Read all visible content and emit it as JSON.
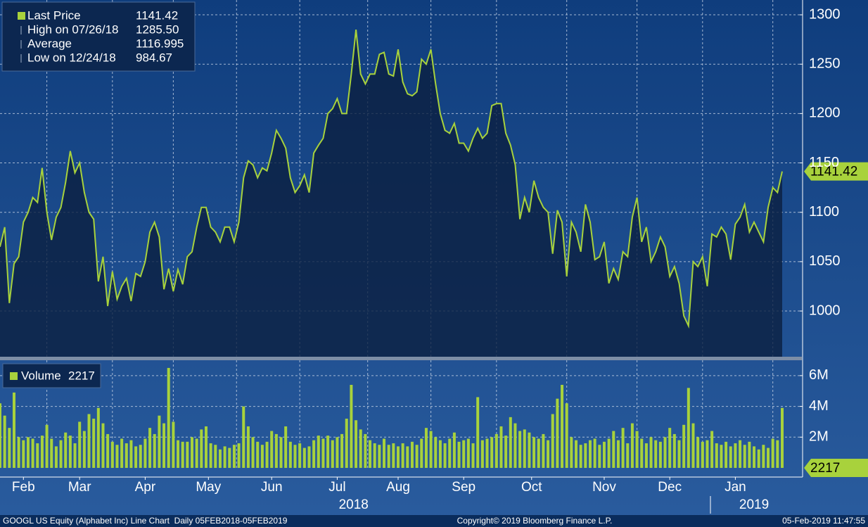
{
  "chart_data": [
    {
      "type": "line",
      "series": [
        {
          "name": "Last Price",
          "color": "#a8d23c",
          "values": [
            1065,
            1085,
            1008,
            1048,
            1055,
            1090,
            1100,
            1115,
            1110,
            1145,
            1100,
            1072,
            1095,
            1105,
            1130,
            1162,
            1140,
            1150,
            1120,
            1100,
            1093,
            1030,
            1055,
            1005,
            1040,
            1012,
            1025,
            1033,
            1010,
            1038,
            1035,
            1050,
            1080,
            1090,
            1075,
            1022,
            1043,
            1020,
            1042,
            1027,
            1055,
            1060,
            1085,
            1105,
            1105,
            1085,
            1080,
            1070,
            1085,
            1085,
            1070,
            1090,
            1135,
            1152,
            1148,
            1135,
            1145,
            1142,
            1160,
            1183,
            1175,
            1165,
            1135,
            1120,
            1127,
            1138,
            1120,
            1160,
            1168,
            1175,
            1200,
            1205,
            1215,
            1200,
            1200,
            1240,
            1285,
            1240,
            1230,
            1240,
            1240,
            1260,
            1262,
            1240,
            1238,
            1265,
            1232,
            1220,
            1218,
            1222,
            1255,
            1250,
            1265,
            1230,
            1200,
            1183,
            1180,
            1190,
            1170,
            1170,
            1162,
            1175,
            1185,
            1175,
            1180,
            1208,
            1210,
            1210,
            1180,
            1168,
            1148,
            1093,
            1115,
            1100,
            1132,
            1115,
            1105,
            1100,
            1058,
            1102,
            1090,
            1035,
            1090,
            1080,
            1060,
            1108,
            1090,
            1052,
            1055,
            1070,
            1028,
            1043,
            1032,
            1060,
            1055,
            1095,
            1115,
            1070,
            1085,
            1050,
            1060,
            1075,
            1065,
            1035,
            1045,
            1028,
            995,
            985,
            1050,
            1045,
            1055,
            1025,
            1078,
            1075,
            1085,
            1078,
            1052,
            1088,
            1095,
            1108,
            1080,
            1090,
            1080,
            1070,
            1105,
            1125,
            1120,
            1141.42
          ]
        }
      ],
      "stats": [
        {
          "name": "High on 07/26/18",
          "value": 1285.5,
          "value_label": "1285.50"
        },
        {
          "name": "Average",
          "value": 1116.995
        },
        {
          "name": "Low on 12/24/18",
          "value": 984.67
        }
      ],
      "xlim": [
        0,
        167
      ],
      "ylim": [
        953.7,
        1315
      ],
      "yticks": [
        1000,
        1050,
        1100,
        1150,
        1200,
        1250,
        1300
      ],
      "grid": true,
      "xticks": [
        {
          "value": 5,
          "label": "Feb"
        },
        {
          "value": 17,
          "label": "Mar"
        },
        {
          "value": 31,
          "label": "Apr"
        },
        {
          "value": 44.5,
          "label": "May"
        },
        {
          "value": 58,
          "label": "Jun"
        },
        {
          "value": 72,
          "label": "Jul"
        },
        {
          "value": 85,
          "label": "Aug"
        },
        {
          "value": 99,
          "label": "Sep"
        },
        {
          "value": 113.5,
          "label": "Oct"
        },
        {
          "value": 129,
          "label": "Nov"
        },
        {
          "value": 143,
          "label": "Dec"
        },
        {
          "value": 157,
          "label": "Jan"
        }
      ],
      "year_ticks": [
        {
          "value": 75.5,
          "label": "2018"
        },
        {
          "value": 161,
          "label": "2019"
        }
      ],
      "xgrid": [
        10,
        24,
        37,
        50.5,
        64,
        78.5,
        92,
        106,
        121,
        136,
        150,
        165
      ]
    },
    {
      "type": "bar",
      "series": [
        {
          "name": "Volume",
          "color": "#a8d23c",
          "values": [
            4.2,
            3.4,
            2.6,
            4.9,
            2.0,
            1.8,
            2.0,
            1.9,
            1.6,
            2.1,
            2.8,
            1.9,
            1.4,
            1.8,
            2.3,
            2.1,
            1.6,
            3.0,
            2.4,
            3.5,
            3.2,
            3.9,
            2.9,
            2.2,
            1.7,
            1.5,
            1.9,
            1.6,
            1.8,
            1.4,
            1.5,
            1.9,
            2.6,
            2.2,
            3.4,
            2.9,
            6.5,
            3.0,
            1.8,
            1.7,
            1.7,
            2.0,
            1.9,
            2.5,
            2.7,
            1.6,
            1.5,
            1.2,
            1.4,
            1.3,
            1.5,
            1.6,
            4.0,
            2.7,
            2.0,
            1.7,
            1.5,
            1.7,
            2.4,
            2.2,
            2.0,
            2.7,
            1.7,
            1.5,
            1.6,
            1.3,
            1.4,
            1.8,
            2.1,
            1.9,
            2.1,
            1.8,
            2.0,
            2.2,
            3.2,
            5.4,
            3.1,
            2.5,
            2.2,
            1.8,
            1.6,
            1.5,
            1.9,
            1.5,
            1.6,
            1.4,
            1.6,
            1.4,
            1.7,
            1.5,
            1.9,
            2.6,
            2.4,
            2.0,
            1.8,
            1.6,
            1.9,
            2.3,
            1.7,
            1.8,
            1.9,
            1.6,
            4.6,
            1.8,
            1.9,
            2.0,
            2.2,
            2.7,
            2.1,
            3.3,
            2.9,
            2.4,
            2.5,
            2.3,
            2.0,
            1.9,
            2.2,
            1.8,
            3.5,
            4.5,
            5.4,
            4.2,
            2.0,
            1.8,
            1.5,
            1.6,
            1.8,
            1.9,
            1.5,
            1.7,
            1.9,
            2.4,
            1.8,
            2.6,
            1.6,
            2.9,
            2.4,
            1.9,
            1.6,
            2.0,
            1.8,
            1.7,
            2.0,
            2.6,
            2.2,
            1.8,
            2.8,
            5.2,
            2.9,
            2.0,
            1.7,
            1.8,
            2.4,
            1.6,
            1.5,
            1.7,
            1.4,
            1.6,
            1.8,
            1.5,
            1.7,
            1.4,
            1.2,
            1.5,
            1.3,
            1.9,
            1.8,
            3.9
          ]
        }
      ],
      "current_volume": 2217,
      "xlim": [
        0,
        167
      ],
      "ylim": [
        0,
        7
      ],
      "yticks": [
        {
          "value": 2,
          "label": "2M"
        },
        {
          "value": 4,
          "label": "4M"
        },
        {
          "value": 6,
          "label": "6M"
        }
      ],
      "grid": true
    }
  ],
  "footer": {
    "left": "GOOGL US Equity (Alphabet Inc) Line Chart  Daily 05FEB2018-05FEB2019",
    "center": "Copyright© 2019 Bloomberg Finance L.P.",
    "right": "05-Feb-2019 11:47:55"
  }
}
